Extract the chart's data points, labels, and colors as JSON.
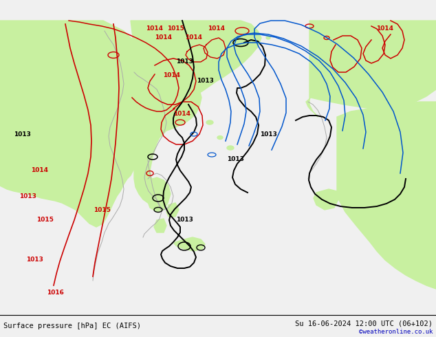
{
  "title_left": "Surface pressure [hPa] EC (AIFS)",
  "title_right": "Su 16-06-2024 12:00 UTC (06+102)",
  "credit": "©weatheronline.co.uk",
  "bg_color": "#f0f0f0",
  "sea_color": "#dcdcdc",
  "green_fill": "#c8f0a0",
  "font_size_labels": 6.5,
  "font_size_title": 7.5,
  "font_size_credit": 6.5,
  "red_color": "#cc0000",
  "black_color": "#000000",
  "blue_color": "#0055cc",
  "gray_coast": "#aaaaaa"
}
